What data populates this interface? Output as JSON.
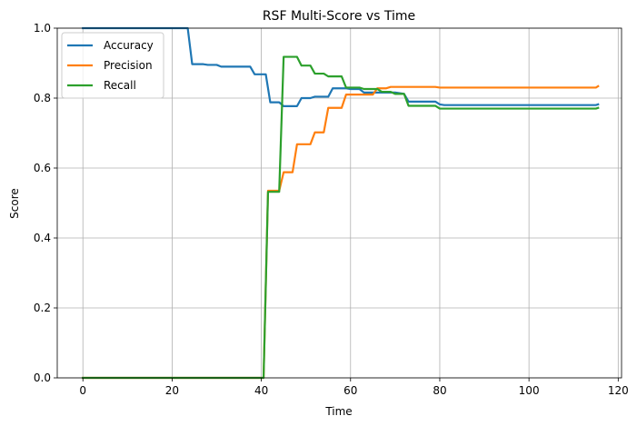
{
  "chart_data": {
    "type": "line",
    "title": "RSF Multi-Score vs Time",
    "xlabel": "Time",
    "ylabel": "Score",
    "xlim": [
      -5.75,
      120.75
    ],
    "ylim": [
      0,
      1
    ],
    "xticks": [
      0,
      20,
      40,
      60,
      80,
      100,
      120
    ],
    "xtick_labels": [
      "0",
      "20",
      "40",
      "60",
      "80",
      "100",
      "120"
    ],
    "yticks": [
      0.0,
      0.2,
      0.4,
      0.6,
      0.8,
      1.0
    ],
    "ytick_labels": [
      "0.0",
      "0.2",
      "0.4",
      "0.6",
      "0.8",
      "1.0"
    ],
    "grid": true,
    "legend": "upper-left",
    "series": [
      {
        "name": "Accuracy",
        "color": "#1f77b4",
        "points": [
          [
            0,
            1.0
          ],
          [
            13,
            1.0
          ],
          [
            23.5,
            1.0
          ],
          [
            24.5,
            0.897
          ],
          [
            27,
            0.897
          ],
          [
            28,
            0.895
          ],
          [
            30,
            0.895
          ],
          [
            31,
            0.89
          ],
          [
            37.5,
            0.89
          ],
          [
            38.5,
            0.868
          ],
          [
            41,
            0.868
          ],
          [
            42,
            0.788
          ],
          [
            44,
            0.788
          ],
          [
            45,
            0.777
          ],
          [
            48,
            0.777
          ],
          [
            49,
            0.8
          ],
          [
            51,
            0.8
          ],
          [
            52,
            0.804
          ],
          [
            55,
            0.804
          ],
          [
            56,
            0.828
          ],
          [
            59,
            0.828
          ],
          [
            60,
            0.826
          ],
          [
            62,
            0.826
          ],
          [
            63,
            0.816
          ],
          [
            70,
            0.816
          ],
          [
            72,
            0.812
          ],
          [
            73,
            0.79
          ],
          [
            79,
            0.79
          ],
          [
            80,
            0.782
          ],
          [
            81,
            0.78
          ],
          [
            115,
            0.78
          ],
          [
            115.5,
            0.782
          ]
        ]
      },
      {
        "name": "Precision",
        "color": "#ff7f0e",
        "points": [
          [
            0,
            0.0
          ],
          [
            40.5,
            0.0
          ],
          [
            41.5,
            0.535
          ],
          [
            44,
            0.535
          ],
          [
            45,
            0.588
          ],
          [
            47,
            0.588
          ],
          [
            48,
            0.668
          ],
          [
            51,
            0.668
          ],
          [
            52,
            0.702
          ],
          [
            54,
            0.702
          ],
          [
            55,
            0.772
          ],
          [
            58,
            0.772
          ],
          [
            59,
            0.81
          ],
          [
            65,
            0.81
          ],
          [
            66,
            0.828
          ],
          [
            68,
            0.828
          ],
          [
            69,
            0.832
          ],
          [
            79,
            0.832
          ],
          [
            80,
            0.83
          ],
          [
            115,
            0.83
          ],
          [
            115.5,
            0.834
          ]
        ]
      },
      {
        "name": "Recall",
        "color": "#2ca02c",
        "points": [
          [
            0,
            0.0
          ],
          [
            40.5,
            0.0
          ],
          [
            41.5,
            0.532
          ],
          [
            44,
            0.532
          ],
          [
            45,
            0.918
          ],
          [
            48,
            0.918
          ],
          [
            49,
            0.893
          ],
          [
            51,
            0.893
          ],
          [
            52,
            0.87
          ],
          [
            54,
            0.87
          ],
          [
            55,
            0.862
          ],
          [
            58,
            0.862
          ],
          [
            59,
            0.83
          ],
          [
            62,
            0.83
          ],
          [
            63,
            0.826
          ],
          [
            66,
            0.826
          ],
          [
            67,
            0.818
          ],
          [
            69,
            0.818
          ],
          [
            70,
            0.812
          ],
          [
            72,
            0.812
          ],
          [
            73,
            0.778
          ],
          [
            79,
            0.778
          ],
          [
            80,
            0.77
          ],
          [
            115,
            0.77
          ],
          [
            115.5,
            0.772
          ]
        ]
      }
    ]
  }
}
